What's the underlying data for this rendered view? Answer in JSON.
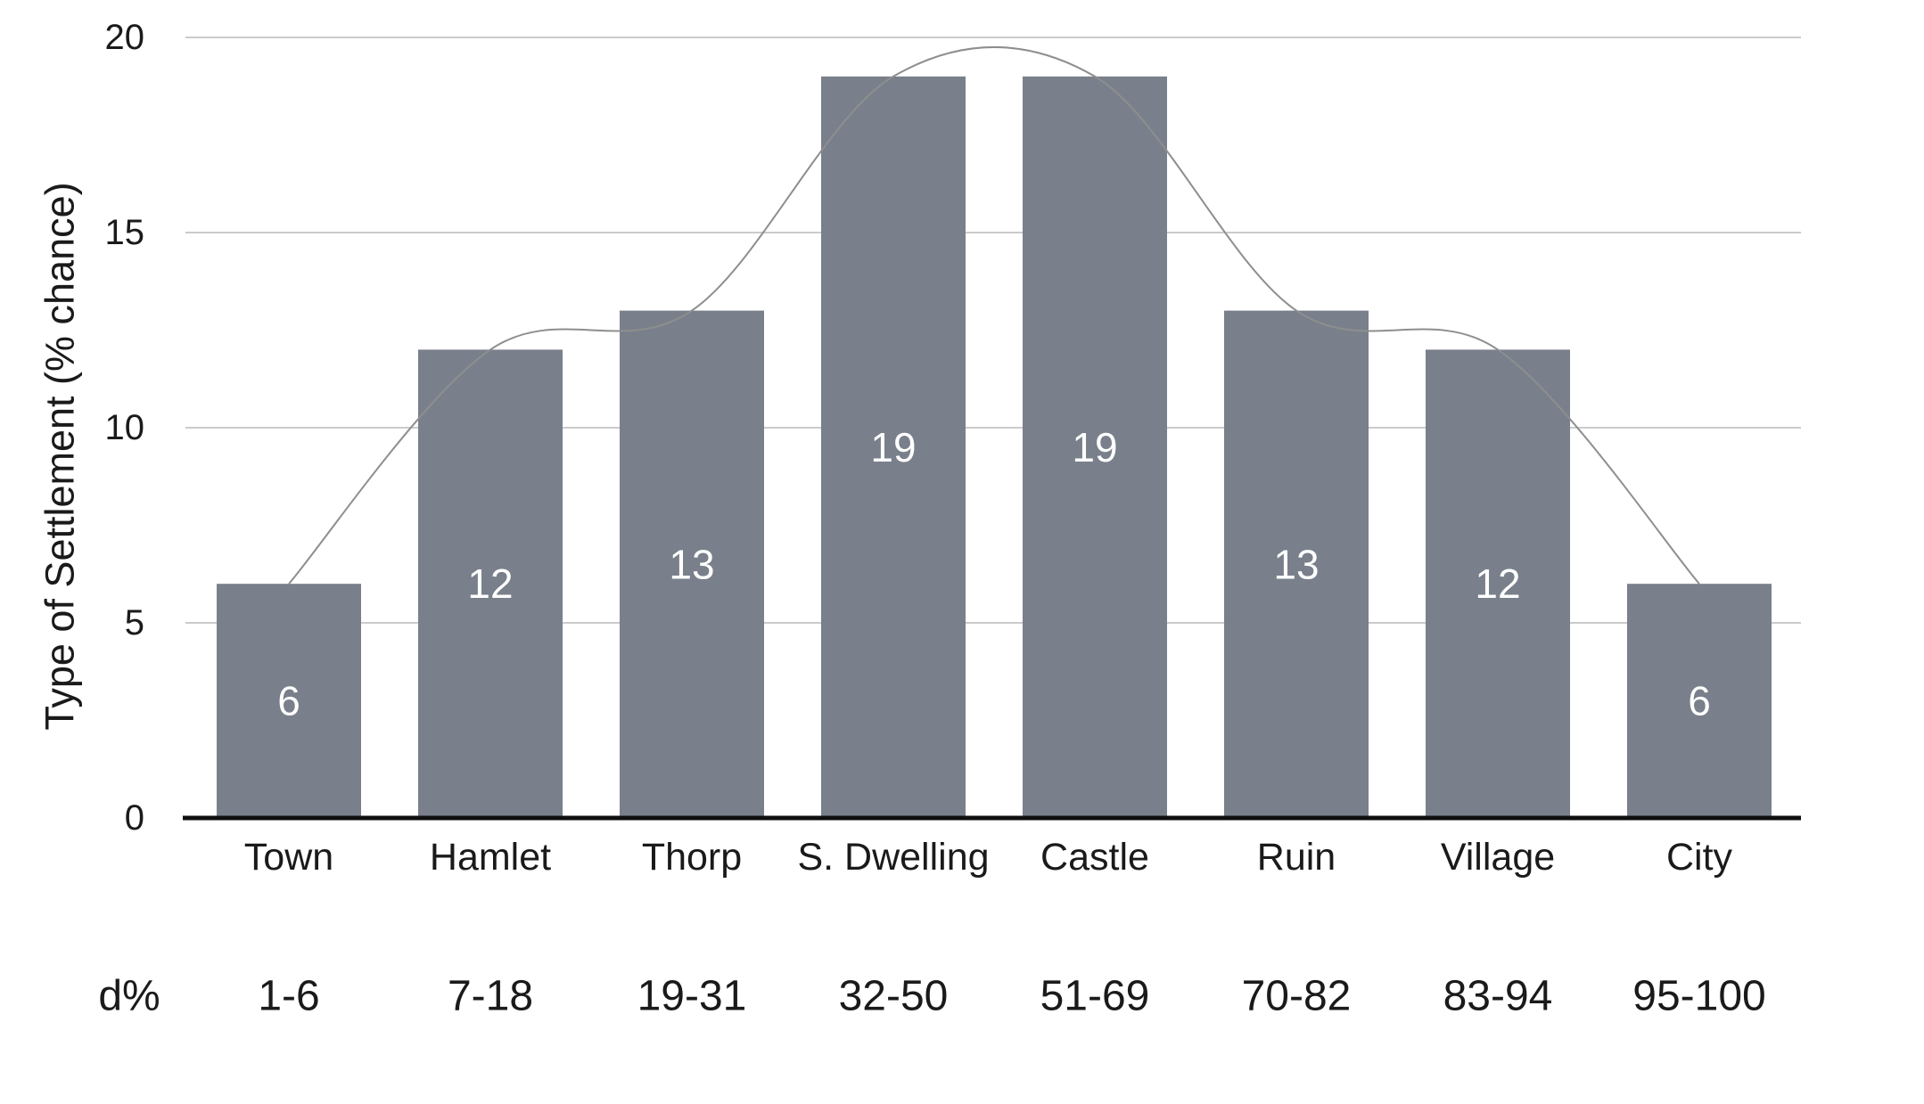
{
  "chart_data": {
    "type": "bar",
    "title": "",
    "ylabel": "Type of Settlement (% chance)",
    "xlabel": "",
    "categories": [
      "Town",
      "Hamlet",
      "Thorp",
      "S. Dwelling",
      "Castle",
      "Ruin",
      "Village",
      "City"
    ],
    "values": [
      6,
      12,
      13,
      19,
      19,
      13,
      12,
      6
    ],
    "bar_value_labels": [
      "6",
      "12",
      "13",
      "19",
      "19",
      "13",
      "12",
      "6"
    ],
    "d_percent_label": "d%",
    "d_percent_ranges": [
      "1-6",
      "7-18",
      "19-31",
      "32-50",
      "51-69",
      "70-82",
      "83-94",
      "95-100"
    ],
    "yticks": [
      0,
      5,
      10,
      15,
      20
    ],
    "ylim": [
      0,
      20
    ],
    "grid": true,
    "legend": "none",
    "overlay": "smoothed bell curve through bar tops",
    "colors": {
      "bar": "#79808B",
      "gridline": "#CBCBCB",
      "axis_line": "#0F0F0F",
      "curve": "#8E8E8E",
      "bar_value_text": "#FFFFFF",
      "label_text": "#1A1A1A"
    }
  }
}
